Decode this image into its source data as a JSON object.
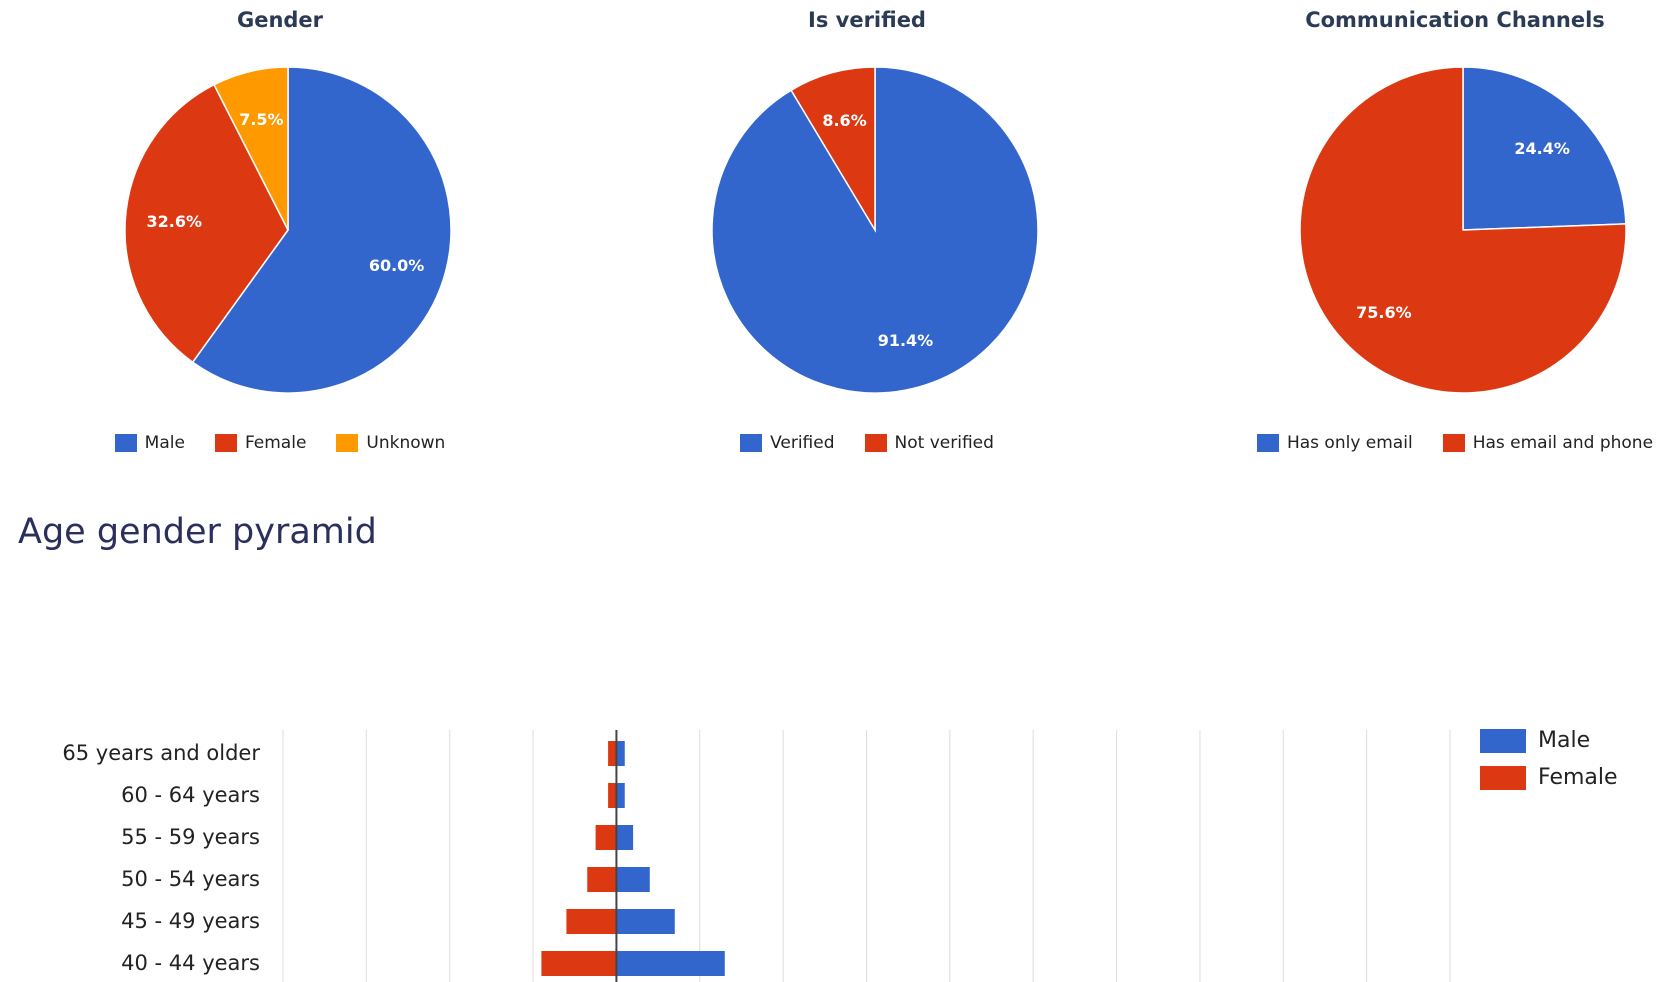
{
  "colors": {
    "blue": "#3366cc",
    "red": "#dc3912",
    "orange": "#ff9900",
    "grid": "#dddddd",
    "axis": "#444444"
  },
  "chart_data": [
    {
      "type": "pie",
      "title": "Gender",
      "slices": [
        {
          "label": "Male",
          "value": 60.0,
          "display": "60.0%",
          "color": "#3366cc"
        },
        {
          "label": "Female",
          "value": 32.6,
          "display": "32.6%",
          "color": "#dc3912"
        },
        {
          "label": "Unknown",
          "value": 7.5,
          "display": "7.5%",
          "color": "#ff9900"
        }
      ]
    },
    {
      "type": "pie",
      "title": "Is verified",
      "slices": [
        {
          "label": "Verified",
          "value": 91.4,
          "display": "91.4%",
          "color": "#3366cc"
        },
        {
          "label": "Not verified",
          "value": 8.6,
          "display": "8.6%",
          "color": "#dc3912"
        }
      ]
    },
    {
      "type": "pie",
      "title": "Communication Channels",
      "slices": [
        {
          "label": "Has only email",
          "value": 24.4,
          "display": "24.4%",
          "color": "#3366cc"
        },
        {
          "label": "Has email and phone",
          "value": 75.6,
          "display": "75.6%",
          "color": "#dc3912"
        }
      ]
    },
    {
      "type": "bar",
      "orientation": "horizontal",
      "title": "Age gender pyramid",
      "categories": [
        "65 years and older",
        "60 - 64 years",
        "55 - 59 years",
        "50 - 54 years",
        "45 - 49 years",
        "40 - 44 years"
      ],
      "series": [
        {
          "name": "Male",
          "color": "#3366cc",
          "values": [
            1,
            1,
            2,
            4,
            7,
            13
          ]
        },
        {
          "name": "Female",
          "color": "#dc3912",
          "values": [
            -1,
            -1,
            -2.5,
            -3.5,
            -6,
            -9
          ]
        }
      ],
      "xlim": [
        -40,
        100
      ],
      "grid": true,
      "legend": "top-right"
    }
  ]
}
